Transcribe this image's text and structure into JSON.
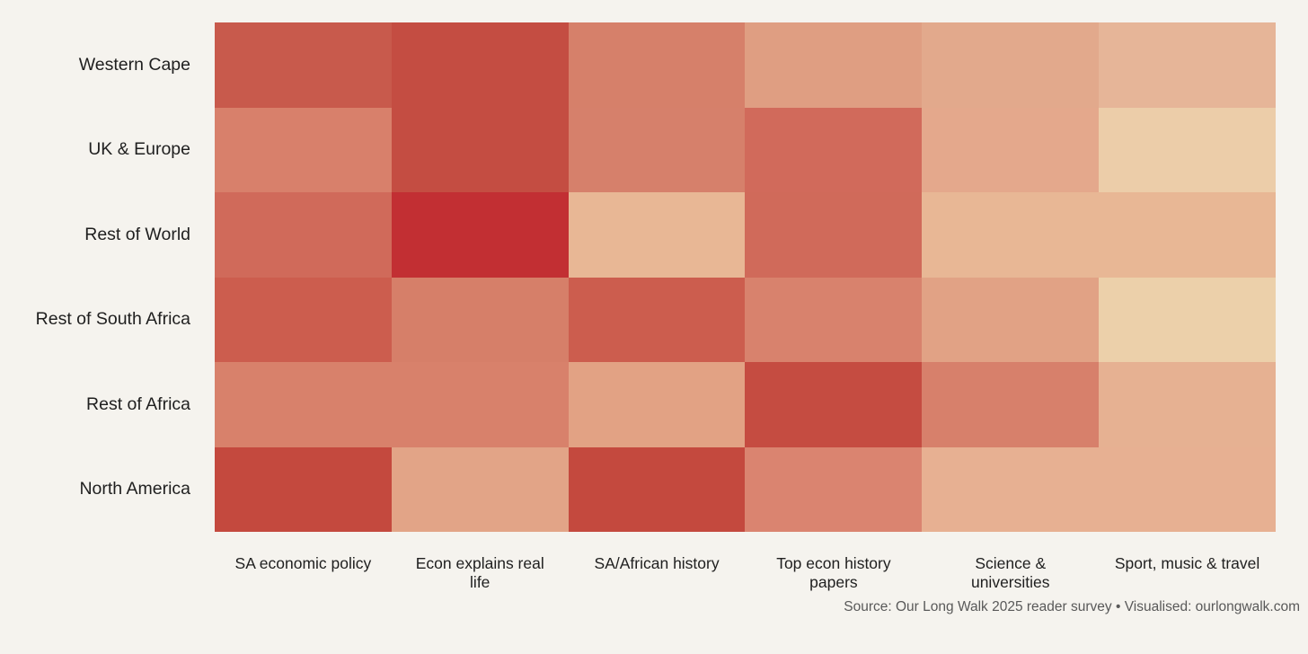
{
  "background_color": "#f5f3ee",
  "text_color": "#1f1f1f",
  "source_note": "Source: Our Long Walk 2025 reader survey • Visualised: ourlongwalk.com",
  "chart_data": {
    "type": "heatmap",
    "rows": [
      "Western Cape",
      "UK & Europe",
      "Rest of World",
      "Rest of South Africa",
      "Rest of Africa",
      "North America"
    ],
    "columns": [
      "SA economic policy",
      "Econ explains real life",
      "SA/African history",
      "Top econ history papers",
      "Science & universities",
      "Sport, music & travel"
    ],
    "cell_colors": [
      [
        "#c85a4c",
        "#c44d42",
        "#d6806a",
        "#df9e82",
        "#e2a98c",
        "#e6b598"
      ],
      [
        "#d8806b",
        "#c44d42",
        "#d6806b",
        "#d16a5b",
        "#e4a88c",
        "#eccda9"
      ],
      [
        "#d06a5a",
        "#c22f33",
        "#e8b795",
        "#d06a5a",
        "#e8b795",
        "#e8b795"
      ],
      [
        "#cc5d4e",
        "#d67f69",
        "#cc5d4e",
        "#d8826d",
        "#e1a285",
        "#ecd0aa"
      ],
      [
        "#d8816b",
        "#d8816b",
        "#e2a284",
        "#c54c41",
        "#d7806b",
        "#e6b192"
      ],
      [
        "#c4493e",
        "#e2a487",
        "#c4493e",
        "#da8470",
        "#e7b092",
        "#e7b092"
      ]
    ],
    "intensity_estimate_0to1": [
      [
        0.72,
        0.78,
        0.45,
        0.28,
        0.24,
        0.18
      ],
      [
        0.45,
        0.78,
        0.45,
        0.6,
        0.25,
        0.02
      ],
      [
        0.6,
        1.0,
        0.15,
        0.6,
        0.15,
        0.15
      ],
      [
        0.7,
        0.46,
        0.7,
        0.44,
        0.27,
        0.01
      ],
      [
        0.44,
        0.44,
        0.26,
        0.79,
        0.45,
        0.17
      ],
      [
        0.81,
        0.25,
        0.81,
        0.42,
        0.2,
        0.2
      ]
    ],
    "colormap": {
      "low": "#eccda9",
      "high": "#c22f33"
    },
    "legend": "none",
    "grid_lines": false
  }
}
